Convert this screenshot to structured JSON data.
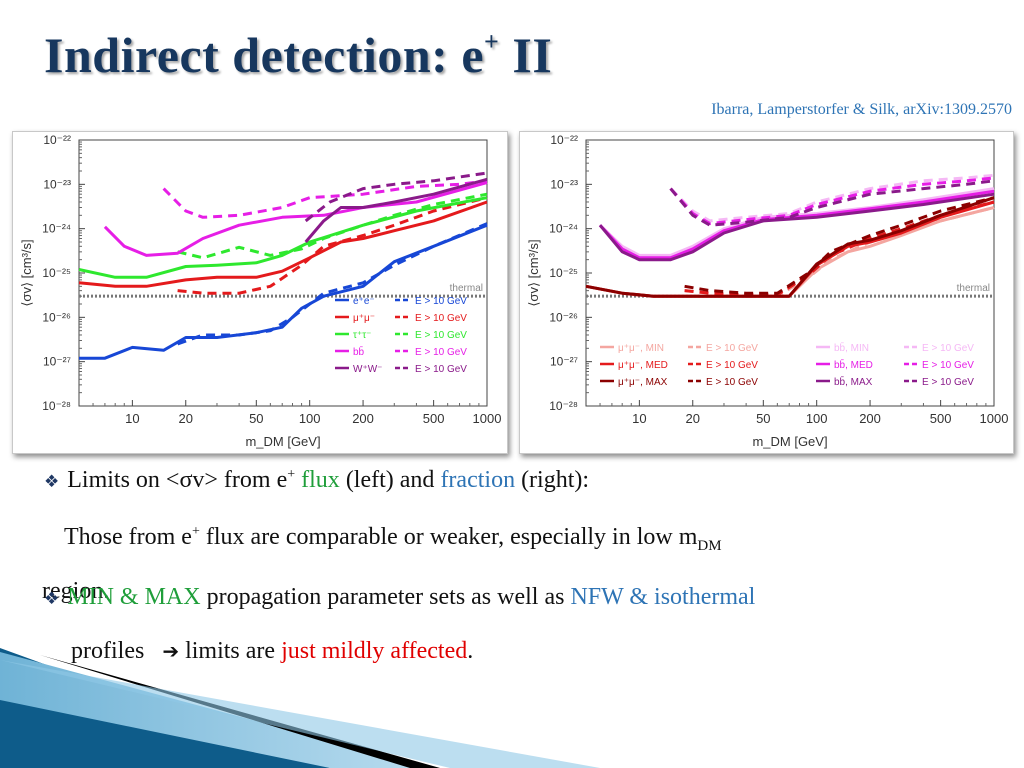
{
  "slide": {
    "title_main": "Indirect detection: e",
    "title_sup": "+",
    "title_end": " II",
    "citation": "Ibarra, Lamperstorfer & Silk, arXiv:1309.2570"
  },
  "bullets": {
    "b1": {
      "prefix": "Limits on <σv> from e",
      "sup": "+",
      "mid": " ",
      "flux": "flux",
      "mid2": " (left) and ",
      "fraction": "fraction",
      "end": " (right):"
    },
    "b1b": {
      "text": "Those from e",
      "sup": "+",
      "text2": " flux are comparable or weaker, especially in low m",
      "sub": "DM"
    },
    "b1c": {
      "text": "region."
    },
    "b2": {
      "minmax": "MIN & MAX",
      "mid": " propagation parameter sets as well as ",
      "profiles": "NFW & isothermal"
    },
    "b2b": {
      "text": "profiles",
      "arrow": "➔",
      "mid": "  limits are ",
      "affected": "just mildly affected",
      "end": "."
    }
  },
  "colors": {
    "title": "#17375e",
    "citation": "#2e74b5",
    "green_text": "#1f9e3a",
    "blue_text": "#2e74b5",
    "red_text": "#e00000"
  },
  "chart_data": [
    {
      "type": "line",
      "xlabel": "m_DM [GeV]",
      "ylabel": "⟨σv⟩ [cm³/s]",
      "xscale": "log",
      "yscale": "log",
      "xlim": [
        5,
        1000
      ],
      "ylim": [
        1e-28,
        1e-22
      ],
      "xticks": [
        "10",
        "20",
        "50",
        "100",
        "200",
        "500",
        "1000"
      ],
      "yticks": [
        "10⁻²²",
        "10⁻²³",
        "10⁻²⁴",
        "10⁻²⁵",
        "10⁻²⁶",
        "10⁻²⁷",
        "10⁻²⁸"
      ],
      "reference_line": {
        "label": "thermal",
        "y": 3e-26
      },
      "legend_placement": "bottom-right",
      "series": [
        {
          "name": "e⁺e⁻",
          "color": "#1747d6",
          "dash": false,
          "x": [
            5,
            7,
            10,
            15,
            20,
            30,
            50,
            70,
            90,
            120,
            200,
            300,
            500,
            1000
          ],
          "y": [
            1.2e-27,
            1.2e-27,
            2.1e-27,
            1.8e-27,
            3.5e-27,
            3.5e-27,
            4.5e-27,
            6e-27,
            1.6e-26,
            3e-26,
            5e-26,
            1.8e-25,
            4e-25,
            1.2e-24
          ]
        },
        {
          "name": "E > 10 GeV",
          "color": "#1747d6",
          "dash": true,
          "x": [
            18,
            25,
            40,
            60,
            80,
            120,
            200,
            300,
            500,
            1000
          ],
          "y": [
            2.5e-27,
            4e-27,
            4e-27,
            5e-27,
            1e-26,
            3.5e-26,
            6e-26,
            1.5e-25,
            4e-25,
            1.3e-24
          ]
        },
        {
          "name": "μ⁺μ⁻",
          "color": "#e41a1c",
          "dash": false,
          "x": [
            5,
            8,
            12,
            20,
            30,
            50,
            70,
            100,
            150,
            200,
            300,
            500,
            1000
          ],
          "y": [
            6e-26,
            5e-26,
            5e-26,
            7e-26,
            8e-26,
            8e-26,
            1.1e-25,
            2.2e-25,
            5e-25,
            6e-25,
            9e-25,
            1.5e-24,
            4e-24
          ]
        },
        {
          "name": "E > 10 GeV",
          "color": "#e41a1c",
          "dash": true,
          "x": [
            18,
            25,
            40,
            60,
            90,
            120,
            200,
            300,
            500,
            1000
          ],
          "y": [
            4e-26,
            3.5e-26,
            3.5e-26,
            5e-26,
            1.5e-25,
            4e-25,
            7e-25,
            1.2e-24,
            2.5e-24,
            5e-24
          ]
        },
        {
          "name": "τ⁺τ⁻",
          "color": "#2ee82e",
          "dash": false,
          "x": [
            5,
            8,
            12,
            20,
            30,
            50,
            70,
            100,
            200,
            400,
            1000
          ],
          "y": [
            1.2e-25,
            8e-26,
            8e-26,
            1.4e-25,
            1.5e-25,
            1.7e-25,
            2.5e-25,
            5e-25,
            1.2e-24,
            2.5e-24,
            5e-24
          ]
        },
        {
          "name": "E > 10 GeV",
          "color": "#2ee82e",
          "dash": true,
          "x": [
            18,
            25,
            40,
            60,
            90,
            120,
            200,
            300,
            500,
            1000
          ],
          "y": [
            3e-25,
            2.2e-25,
            3.8e-25,
            2.5e-25,
            3.5e-25,
            6e-25,
            1.2e-24,
            2e-24,
            3.5e-24,
            6e-24
          ]
        },
        {
          "name": "bb̄",
          "color": "#e61ee6",
          "dash": false,
          "x": [
            7,
            9,
            12,
            18,
            25,
            40,
            70,
            120,
            200,
            400,
            1000
          ],
          "y": [
            1.1e-24,
            4e-25,
            2.5e-25,
            2.8e-25,
            6e-25,
            1.2e-24,
            1.8e-24,
            2e-24,
            3e-24,
            4e-24,
            1.1e-23
          ]
        },
        {
          "name": "E > 10 GeV",
          "color": "#e61ee6",
          "dash": true,
          "x": [
            15,
            20,
            25,
            40,
            70,
            100,
            200,
            400,
            700,
            1000
          ],
          "y": [
            8e-24,
            2.5e-24,
            1.8e-24,
            2e-24,
            3e-24,
            5e-24,
            6e-24,
            9e-24,
            1e-23,
            1.2e-23
          ]
        },
        {
          "name": "W⁺W⁻",
          "color": "#8a1a8a",
          "dash": false,
          "x": [
            95,
            120,
            150,
            200,
            300,
            500,
            1000
          ],
          "y": [
            5e-25,
            1.5e-24,
            3e-24,
            3e-24,
            4e-24,
            6e-24,
            1.3e-23
          ]
        },
        {
          "name": "E > 10 GeV",
          "color": "#8a1a8a",
          "dash": true,
          "x": [
            95,
            130,
            200,
            300,
            500,
            1000
          ],
          "y": [
            1.5e-24,
            4e-24,
            8e-24,
            1e-23,
            1.2e-23,
            1.8e-23
          ]
        }
      ]
    },
    {
      "type": "line",
      "xlabel": "m_DM [GeV]",
      "ylabel": "⟨σv⟩ [cm³/s]",
      "xscale": "log",
      "yscale": "log",
      "xlim": [
        5,
        1000
      ],
      "ylim": [
        1e-28,
        1e-22
      ],
      "xticks": [
        "10",
        "20",
        "50",
        "100",
        "200",
        "500",
        "1000"
      ],
      "yticks": [
        "10⁻²²",
        "10⁻²³",
        "10⁻²⁴",
        "10⁻²⁵",
        "10⁻²⁶",
        "10⁻²⁷",
        "10⁻²⁸"
      ],
      "reference_line": {
        "label": "thermal",
        "y": 3e-26
      },
      "legend_placement": "bottom",
      "series": [
        {
          "name": "μ⁺μ⁻, MIN",
          "color": "#f4a6a0",
          "dash": false,
          "x": [
            5,
            8,
            12,
            20,
            30,
            50,
            70,
            100,
            150,
            200,
            300,
            500,
            1000
          ],
          "y": [
            5e-26,
            3.5e-26,
            3e-26,
            3e-26,
            3e-26,
            3e-26,
            3e-26,
            1.2e-25,
            3e-25,
            4e-25,
            7e-25,
            1.5e-24,
            3e-24
          ]
        },
        {
          "name": "E > 10 GeV",
          "color": "#f4a6a0",
          "dash": true,
          "x": [
            18,
            25,
            40,
            60,
            90,
            120,
            200,
            300,
            500,
            1000
          ],
          "y": [
            4e-26,
            3.5e-26,
            3e-26,
            3e-26,
            8e-26,
            2e-25,
            5e-25,
            8e-25,
            1.5e-24,
            3e-24
          ]
        },
        {
          "name": "μ⁺μ⁻, MED",
          "color": "#e41a1c",
          "dash": false,
          "x": [
            5,
            8,
            12,
            20,
            30,
            50,
            70,
            100,
            150,
            200,
            300,
            500,
            1000
          ],
          "y": [
            5e-26,
            3.5e-26,
            3e-26,
            3e-26,
            3e-26,
            3e-26,
            3e-26,
            1.5e-25,
            4e-25,
            5e-25,
            8e-25,
            1.8e-24,
            4e-24
          ]
        },
        {
          "name": "E > 10 GeV",
          "color": "#e41a1c",
          "dash": true,
          "x": [
            18,
            25,
            40,
            60,
            90,
            120,
            200,
            300,
            500,
            1000
          ],
          "y": [
            4e-26,
            3.5e-26,
            3.2e-26,
            3.2e-26,
            9e-26,
            2.5e-25,
            6e-25,
            1e-24,
            2e-24,
            4e-24
          ]
        },
        {
          "name": "μ⁺μ⁻, MAX",
          "color": "#8b0000",
          "dash": false,
          "x": [
            5,
            8,
            12,
            20,
            30,
            50,
            70,
            100,
            150,
            200,
            300,
            500,
            1000
          ],
          "y": [
            5e-26,
            3.5e-26,
            3e-26,
            3e-26,
            3e-26,
            3e-26,
            3e-26,
            1.6e-25,
            4.5e-25,
            5.5e-25,
            9e-25,
            2e-24,
            5e-24
          ]
        },
        {
          "name": "E > 10 GeV",
          "color": "#8b0000",
          "dash": true,
          "x": [
            18,
            25,
            40,
            60,
            90,
            120,
            200,
            300,
            500,
            1000
          ],
          "y": [
            5e-26,
            4e-26,
            3.5e-26,
            3.5e-26,
            1e-25,
            3e-25,
            7e-25,
            1.2e-24,
            2.5e-24,
            5e-24
          ]
        },
        {
          "name": "bb̄, MIN",
          "color": "#f5b8f5",
          "dash": false,
          "x": [
            6,
            8,
            10,
            15,
            20,
            30,
            50,
            100,
            200,
            400,
            1000
          ],
          "y": [
            1.2e-24,
            4e-25,
            2.5e-25,
            2.5e-25,
            4e-25,
            1e-24,
            1.8e-24,
            2.2e-24,
            3e-24,
            4.5e-24,
            8e-24
          ]
        },
        {
          "name": "E > 10 GeV",
          "color": "#f5b8f5",
          "dash": true,
          "x": [
            15,
            20,
            25,
            40,
            70,
            100,
            200,
            400,
            700,
            1000
          ],
          "y": [
            8e-24,
            2.5e-24,
            1.5e-24,
            1.8e-24,
            2.2e-24,
            4e-24,
            8e-24,
            1.2e-23,
            1.4e-23,
            1.6e-23
          ]
        },
        {
          "name": "bb̄, MED",
          "color": "#e61ee6",
          "dash": false,
          "x": [
            6,
            8,
            10,
            15,
            20,
            30,
            50,
            100,
            200,
            400,
            1000
          ],
          "y": [
            1.2e-24,
            3.5e-25,
            2.2e-25,
            2.2e-25,
            3.5e-25,
            9e-25,
            1.6e-24,
            2e-24,
            2.8e-24,
            4e-24,
            7e-24
          ]
        },
        {
          "name": "E > 10 GeV",
          "color": "#e61ee6",
          "dash": true,
          "x": [
            15,
            20,
            25,
            40,
            70,
            100,
            200,
            400,
            700,
            1000
          ],
          "y": [
            8e-24,
            2.2e-24,
            1.3e-24,
            1.6e-24,
            2e-24,
            3.5e-24,
            7e-24,
            1e-23,
            1.2e-23,
            1.4e-23
          ]
        },
        {
          "name": "bb̄, MAX",
          "color": "#8a1a8a",
          "dash": false,
          "x": [
            6,
            8,
            10,
            15,
            20,
            30,
            50,
            100,
            200,
            400,
            1000
          ],
          "y": [
            1.2e-24,
            3e-25,
            2e-25,
            2e-25,
            3e-25,
            8e-25,
            1.5e-24,
            1.8e-24,
            2.5e-24,
            3.5e-24,
            6e-24
          ]
        },
        {
          "name": "E > 10 GeV",
          "color": "#8a1a8a",
          "dash": true,
          "x": [
            15,
            20,
            25,
            40,
            70,
            100,
            200,
            400,
            700,
            1000
          ],
          "y": [
            8e-24,
            2e-24,
            1.2e-24,
            1.4e-24,
            1.8e-24,
            3e-24,
            6e-24,
            8e-24,
            1e-23,
            1.2e-23
          ]
        }
      ]
    }
  ]
}
